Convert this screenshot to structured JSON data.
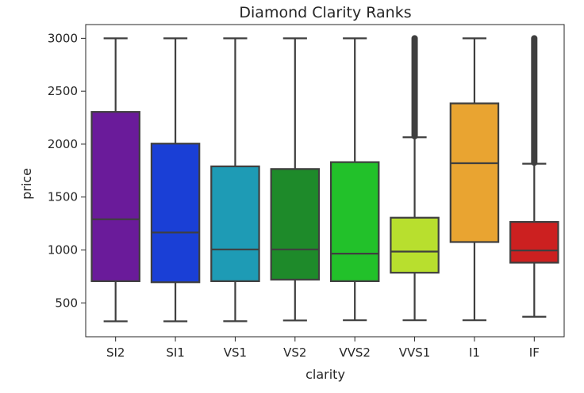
{
  "chart_data": {
    "type": "boxplot",
    "title": "Diamond Clarity Ranks",
    "xlabel": "clarity",
    "ylabel": "price",
    "ylim": [
      180,
      3130
    ],
    "yticks": [
      500,
      1000,
      1500,
      2000,
      2500,
      3000
    ],
    "categories": [
      "SI2",
      "SI1",
      "VS1",
      "VS2",
      "VVS2",
      "VVS1",
      "I1",
      "IF"
    ],
    "colors": [
      "#6a1b9a",
      "#1a3fd6",
      "#1e9bb5",
      "#1e8a2a",
      "#22c12a",
      "#b8df2e",
      "#e9a431",
      "#cc2020"
    ],
    "boxes": [
      {
        "category": "SI2",
        "whisker_low": 326,
        "q1": 705,
        "median": 1290,
        "q3": 2305,
        "whisker_high": 3000,
        "outliers_from": null
      },
      {
        "category": "SI1",
        "whisker_low": 326,
        "q1": 695,
        "median": 1165,
        "q3": 2005,
        "whisker_high": 3000,
        "outliers_from": null
      },
      {
        "category": "VS1",
        "whisker_low": 327,
        "q1": 705,
        "median": 1005,
        "q3": 1790,
        "whisker_high": 3000,
        "outliers_from": null
      },
      {
        "category": "VS2",
        "whisker_low": 334,
        "q1": 720,
        "median": 1005,
        "q3": 1765,
        "whisker_high": 3000,
        "outliers_from": null
      },
      {
        "category": "VVS2",
        "whisker_low": 336,
        "q1": 705,
        "median": 965,
        "q3": 1830,
        "whisker_high": 3000,
        "outliers_from": null
      },
      {
        "category": "VVS1",
        "whisker_low": 336,
        "q1": 785,
        "median": 985,
        "q3": 1305,
        "whisker_high": 2065,
        "outliers_from": 2075
      },
      {
        "category": "I1",
        "whisker_low": 336,
        "q1": 1075,
        "median": 1820,
        "q3": 2385,
        "whisker_high": 3000,
        "outliers_from": null
      },
      {
        "category": "IF",
        "whisker_low": 369,
        "q1": 880,
        "median": 995,
        "q3": 1265,
        "whisker_high": 1815,
        "outliers_from": 1825
      }
    ],
    "outlier_top": 3000,
    "grid": false,
    "legend": "none"
  }
}
